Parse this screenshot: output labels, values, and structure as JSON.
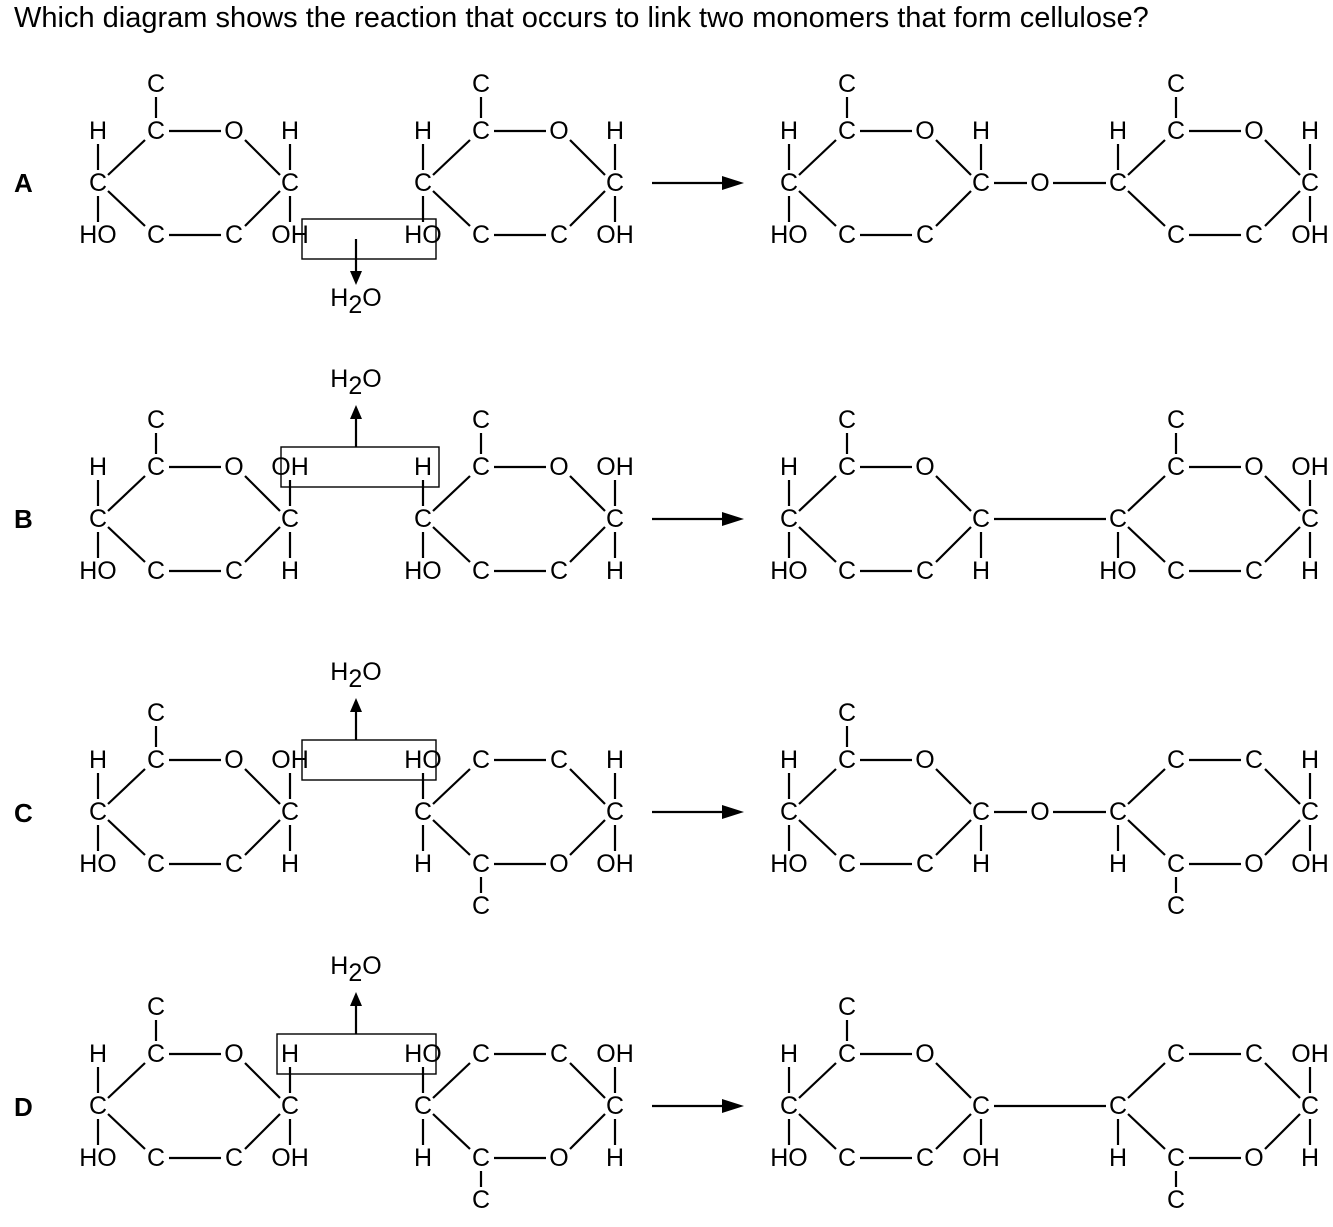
{
  "question": "Which diagram shows the reaction that occurs to link two monomers that form cellulose?",
  "atoms": {
    "carbon": "C",
    "oxygen": "O",
    "hydrogen": "H",
    "hydroxyl": "OH",
    "hydroxyl_left": "HO",
    "water": "H",
    "water_sub": "2",
    "water_o": "O"
  },
  "options": [
    {
      "label": "A"
    },
    {
      "label": "B"
    },
    {
      "label": "C"
    },
    {
      "label": "D"
    }
  ]
}
